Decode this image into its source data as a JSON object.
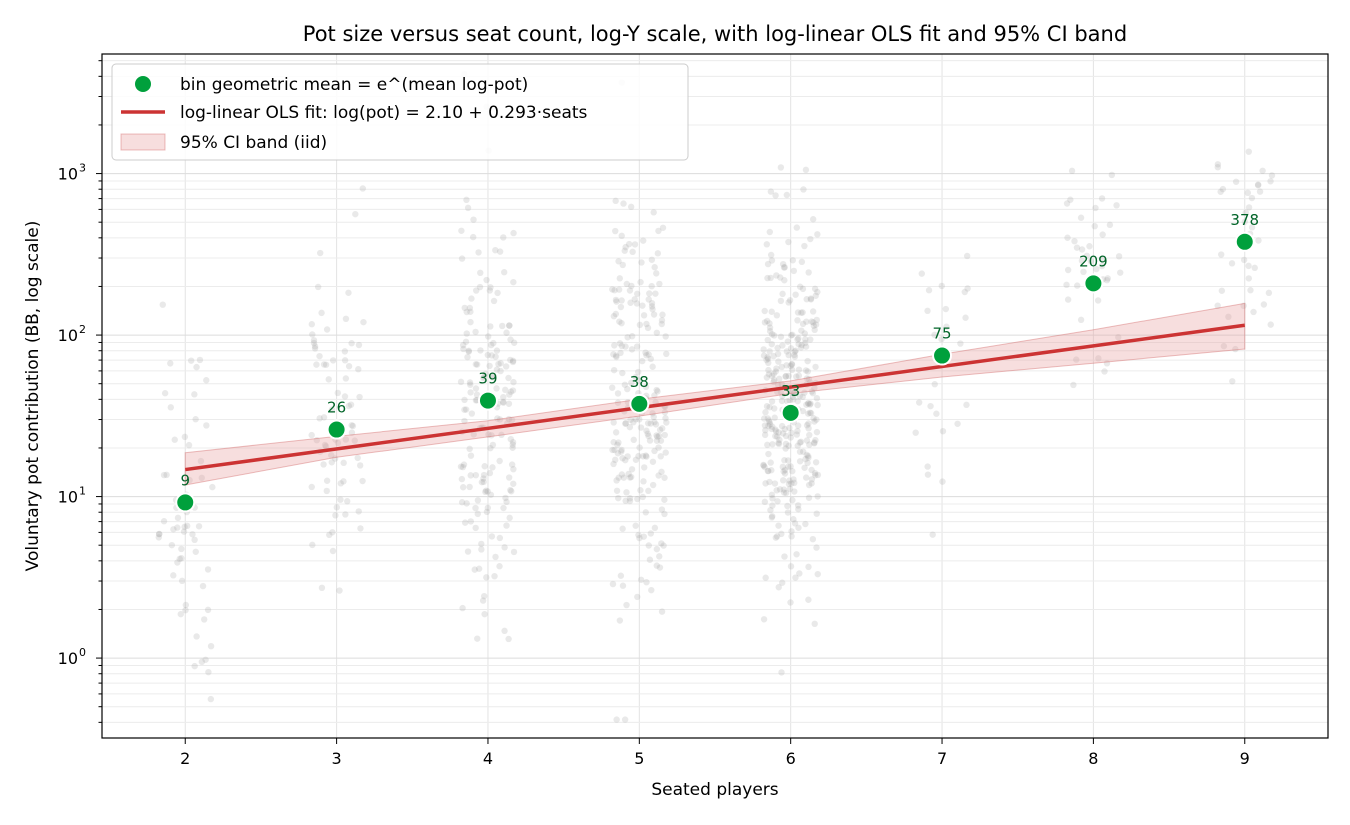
{
  "chart_data": {
    "type": "scatter",
    "title": "Pot size versus seat count, log-Y scale, with log-linear OLS fit and 95% CI band",
    "xlabel": "Seated players",
    "ylabel": "Voluntary pot contribution (BB, log scale)",
    "x_ticks": [
      "2",
      "3",
      "4",
      "5",
      "6",
      "7",
      "8",
      "9"
    ],
    "y_ticks": [
      {
        "value": 1,
        "base": "10",
        "exp": "0"
      },
      {
        "value": 10,
        "base": "10",
        "exp": "1"
      },
      {
        "value": 100,
        "base": "10",
        "exp": "2"
      },
      {
        "value": 1000,
        "base": "10",
        "exp": "3"
      }
    ],
    "xlim": [
      1.45,
      9.55
    ],
    "ylim": [
      0.32,
      5500
    ],
    "yscale": "log",
    "grid": true,
    "legend_position": "upper left",
    "series": [
      {
        "name": "bin geometric mean = e^(mean log-pot)",
        "kind": "scatter",
        "color": "#00a03c",
        "label_color": "#006428",
        "x": [
          2,
          3,
          4,
          5,
          6,
          7,
          8,
          9
        ],
        "y": [
          9.2,
          26,
          39.3,
          37.5,
          33,
          74.7,
          209,
          378
        ],
        "labels": [
          "9",
          "26",
          "39",
          "38",
          "33",
          "75",
          "209",
          "378"
        ]
      },
      {
        "name": "log-linear OLS fit: log(pot) = 2.10 + 0.293·seats",
        "kind": "line",
        "color": "#cc3333",
        "x": [
          2,
          9
        ],
        "y": [
          14.7,
          115
        ]
      },
      {
        "name": "95% CI band (iid)",
        "kind": "band",
        "color": "#e8a0a0",
        "x": [
          2,
          3,
          4,
          5,
          6,
          7,
          8,
          9
        ],
        "lower": [
          11.8,
          17.5,
          23.4,
          31.5,
          43.5,
          55,
          67,
          82
        ],
        "upper": [
          18.7,
          23.6,
          29.5,
          40,
          52,
          76,
          108,
          157
        ]
      },
      {
        "name": "individual hands",
        "kind": "jitter-scatter",
        "color": "#999999",
        "x": [
          2,
          3,
          4,
          5,
          6,
          7,
          8,
          9
        ],
        "counts": [
          60,
          75,
          180,
          220,
          320,
          25,
          40,
          40
        ],
        "log_mean": [
          2.2,
          3.26,
          3.67,
          3.62,
          3.5,
          4.31,
          5.34,
          5.93
        ],
        "log_sd": [
          1.4,
          1.3,
          1.4,
          1.4,
          1.3,
          1.2,
          0.9,
          0.8
        ]
      }
    ]
  }
}
